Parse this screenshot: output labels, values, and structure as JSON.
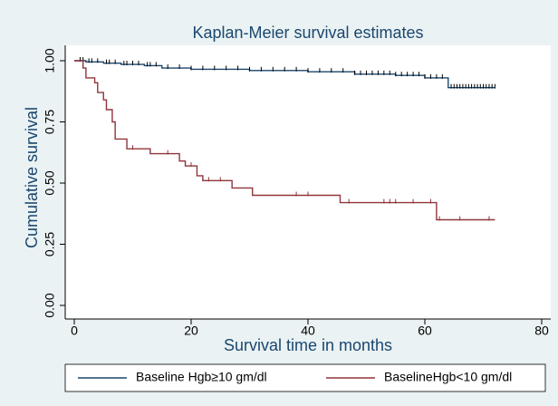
{
  "chart_data": {
    "type": "step",
    "title": "Kaplan-Meier survival estimates",
    "x_label": "Survival time in months",
    "y_label": "Cumulative survival",
    "xlim": [
      0,
      80
    ],
    "xticks": [
      0,
      20,
      40,
      60,
      80
    ],
    "ylim": [
      0,
      1
    ],
    "yticks": [
      {
        "value": 0,
        "label": "0.00"
      },
      {
        "value": 0.25,
        "label": "0.25"
      },
      {
        "value": 0.5,
        "label": "0.50"
      },
      {
        "value": 0.75,
        "label": "0.75"
      },
      {
        "value": 1,
        "label": "1.00"
      }
    ],
    "grid": false,
    "legend": "bottom",
    "series": [
      {
        "name": "Baseline Hgb≥10 gm/dl",
        "color": "#1a476f",
        "x": [
          0,
          2,
          5,
          8,
          12,
          15,
          20,
          30,
          40,
          48,
          55,
          60,
          64,
          72
        ],
        "values": [
          1,
          0.995,
          0.99,
          0.985,
          0.98,
          0.97,
          0.965,
          0.96,
          0.955,
          0.945,
          0.94,
          0.93,
          0.89,
          0.89
        ],
        "censored": [
          1,
          1.5,
          2.5,
          3,
          4,
          5.5,
          6,
          7,
          8.5,
          9,
          10,
          11,
          12.5,
          13,
          14,
          16,
          18,
          20,
          22,
          24,
          26,
          28,
          30,
          32,
          34,
          36,
          38,
          40,
          42,
          44,
          46,
          48,
          49,
          50,
          51,
          52,
          53,
          54,
          55,
          56,
          57,
          58,
          59,
          60,
          61,
          62,
          63,
          64.5,
          65,
          65.5,
          66,
          66.5,
          67,
          67.5,
          68,
          68.5,
          69,
          69.5,
          70,
          70.5,
          71,
          71.5,
          72
        ]
      },
      {
        "name": "BaselineHgb<10 gm/dl",
        "color": "#90353b",
        "x": [
          0,
          1.5,
          2,
          3.5,
          4,
          5,
          5.5,
          6.5,
          7,
          9,
          13,
          18,
          19,
          21,
          22,
          27,
          30.5,
          45.5,
          62,
          72
        ],
        "values": [
          1,
          0.97,
          0.93,
          0.91,
          0.87,
          0.84,
          0.8,
          0.75,
          0.68,
          0.64,
          0.62,
          0.59,
          0.57,
          0.53,
          0.51,
          0.48,
          0.45,
          0.42,
          0.35,
          0.35
        ],
        "censored": [
          10,
          16,
          20,
          23,
          25,
          38,
          40,
          47,
          53,
          54,
          55,
          58,
          61,
          62.5,
          66,
          71
        ]
      }
    ]
  }
}
